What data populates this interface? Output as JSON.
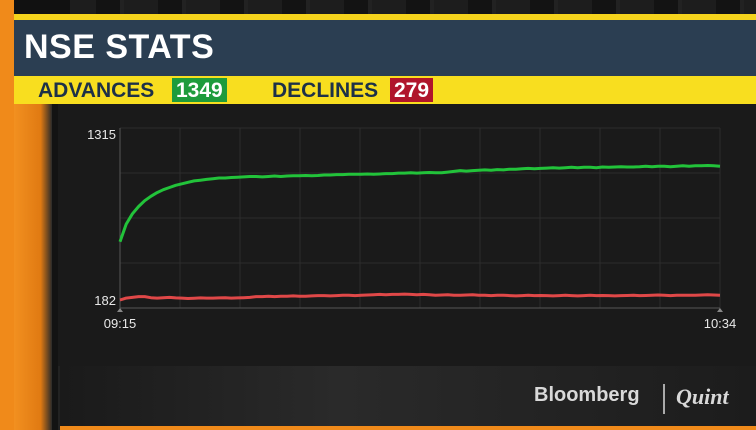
{
  "header": {
    "title": "NSE STATS"
  },
  "stats": {
    "advances_label": "ADVANCES",
    "advances_value": "1349",
    "declines_label": "DECLINES",
    "declines_value": "279"
  },
  "chart_data": {
    "type": "line",
    "x_start": "09:15",
    "x_end": "10:34",
    "y_ticks": [
      "1315",
      "182"
    ],
    "ylim": [
      182,
      1315
    ],
    "grid": true,
    "series": [
      {
        "color": "#22c33a",
        "values": [
          580,
          700,
          770,
          820,
          860,
          890,
          915,
          935,
          950,
          965,
          975,
          985,
          995,
          1000,
          1005,
          1010,
          1015,
          1015,
          1018,
          1020,
          1022,
          1025,
          1025,
          1022,
          1025,
          1028,
          1025,
          1028,
          1030,
          1030,
          1032,
          1030,
          1032,
          1035,
          1035,
          1038,
          1038,
          1040,
          1040,
          1040,
          1042,
          1040,
          1042,
          1045,
          1045,
          1048,
          1048,
          1050,
          1048,
          1050,
          1052,
          1050,
          1050,
          1055,
          1060,
          1065,
          1062,
          1065,
          1068,
          1070,
          1068,
          1072,
          1070,
          1075,
          1075,
          1078,
          1080,
          1078,
          1080,
          1082,
          1085,
          1082,
          1085,
          1088,
          1085,
          1088,
          1088,
          1085,
          1090,
          1088,
          1090,
          1092,
          1090,
          1090,
          1092,
          1095,
          1092,
          1095,
          1095,
          1092,
          1095,
          1098,
          1095,
          1098,
          1098,
          1100,
          1098,
          1095
        ]
      },
      {
        "color": "#e04848",
        "values": [
          182,
          195,
          200,
          205,
          205,
          198,
          195,
          198,
          200,
          196,
          195,
          192,
          194,
          196,
          195,
          195,
          196,
          198,
          195,
          196,
          198,
          200,
          205,
          205,
          207,
          205,
          207,
          208,
          210,
          208,
          208,
          210,
          212,
          212,
          210,
          212,
          215,
          214,
          212,
          215,
          216,
          218,
          220,
          218,
          220,
          220,
          222,
          220,
          218,
          220,
          218,
          215,
          216,
          218,
          215,
          214,
          216,
          218,
          215,
          214,
          212,
          214,
          215,
          212,
          210,
          212,
          214,
          212,
          213,
          212,
          210,
          212,
          214,
          212,
          210,
          212,
          214,
          212,
          213,
          212,
          210,
          212,
          213,
          214,
          212,
          213,
          214,
          216,
          214,
          212,
          214,
          215,
          214,
          215,
          216,
          218,
          216,
          215
        ]
      }
    ]
  },
  "branding": {
    "logo_main": "Bloomberg",
    "logo_secondary": "Quint"
  }
}
